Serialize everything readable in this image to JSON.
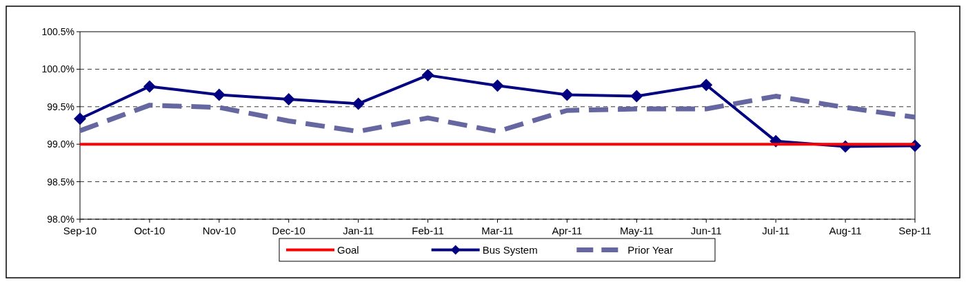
{
  "chart_data": {
    "type": "line",
    "categories": [
      "Sep-10",
      "Oct-10",
      "Nov-10",
      "Dec-10",
      "Jan-11",
      "Feb-11",
      "Mar-11",
      "Apr-11",
      "May-11",
      "Jun-11",
      "Jul-11",
      "Aug-11",
      "Sep-11"
    ],
    "series": [
      {
        "name": "Goal",
        "color": "#ff0000",
        "marker": "none",
        "line_style": "solid",
        "values": [
          99,
          99,
          99,
          99,
          99,
          99,
          99,
          99,
          99,
          99,
          99,
          99,
          99
        ]
      },
      {
        "name": "Bus System",
        "color": "#000080",
        "marker": "diamond",
        "line_style": "solid",
        "values": [
          99.34,
          99.77,
          99.66,
          99.6,
          99.54,
          99.92,
          99.78,
          99.66,
          99.64,
          99.79,
          99.04,
          98.97,
          98.98
        ]
      },
      {
        "name": "Prior Year",
        "color": "#6666a0",
        "marker": "none",
        "line_style": "dashed",
        "values": [
          99.18,
          99.52,
          99.49,
          99.31,
          99.17,
          99.35,
          99.17,
          99.45,
          99.47,
          99.47,
          99.64,
          99.49,
          99.36
        ]
      }
    ],
    "ylim": [
      98,
      100.5
    ],
    "yticks": [
      {
        "value": 98,
        "label": "98.0%"
      },
      {
        "value": 98.5,
        "label": "98.5%"
      },
      {
        "value": 99,
        "label": "99.0%"
      },
      {
        "value": 99.5,
        "label": "99.5%"
      },
      {
        "value": 100,
        "label": "100.0%"
      },
      {
        "value": 100.5,
        "label": "100.5%"
      }
    ],
    "grid": "y",
    "legend": "bottom"
  }
}
